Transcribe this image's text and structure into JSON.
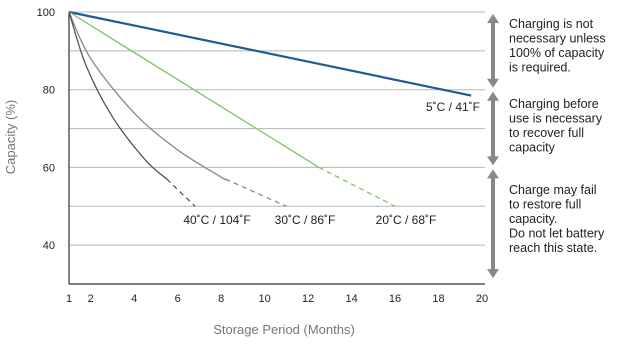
{
  "chart_data": {
    "type": "line",
    "xlabel": "Storage Period (Months)",
    "ylabel": "Capacity (%)",
    "xlim": [
      1,
      20
    ],
    "ylim": [
      30,
      100
    ],
    "x_ticks": [
      "1",
      "2",
      "4",
      "6",
      "8",
      "10",
      "12",
      "14",
      "16",
      "18",
      "20"
    ],
    "y_ticks": [
      "100",
      "80",
      "60",
      "40"
    ],
    "grid": "horizontal",
    "series": [
      {
        "name": "5˚C / 41˚F",
        "color": "#1f5a96",
        "solid": {
          "x": [
            1,
            19.5
          ],
          "y": [
            100,
            78.5
          ]
        },
        "dashed": null
      },
      {
        "name": "20˚C / 68˚F",
        "color": "#7ec468",
        "solid": {
          "x": [
            1,
            12.5
          ],
          "y": [
            100,
            60
          ]
        },
        "dashed": {
          "x": [
            12.5,
            16
          ],
          "y": [
            60,
            50
          ]
        }
      },
      {
        "name": "30˚C / 86˚F",
        "color": "#8a8a8a",
        "solid": {
          "x": [
            1,
            2,
            4,
            6,
            8,
            8.2
          ],
          "y": [
            100,
            88,
            74,
            64.5,
            57.5,
            57
          ]
        },
        "dashed": {
          "x": [
            8.2,
            11
          ],
          "y": [
            57,
            50
          ]
        }
      },
      {
        "name": "40˚C / 104˚F",
        "color": "#555555",
        "solid": {
          "x": [
            1,
            1.8,
            3,
            4.5,
            5.5
          ],
          "y": [
            100,
            86,
            73,
            62,
            57
          ]
        },
        "dashed": {
          "x": [
            5.5,
            6.8
          ],
          "y": [
            57,
            50
          ]
        }
      }
    ],
    "annotations": [
      {
        "y_range": [
          80,
          100
        ],
        "lines": [
          "Charging is not",
          "necessary unless",
          "100% of capacity",
          "is required."
        ]
      },
      {
        "y_range": [
          60,
          80
        ],
        "lines": [
          "Charging before",
          "use is necessary",
          "to recover full",
          "capacity"
        ]
      },
      {
        "y_range": [
          31,
          60
        ],
        "lines": [
          "Charge may fail",
          "to restore full",
          "capacity.",
          "Do not let battery",
          "reach this state."
        ]
      }
    ]
  }
}
